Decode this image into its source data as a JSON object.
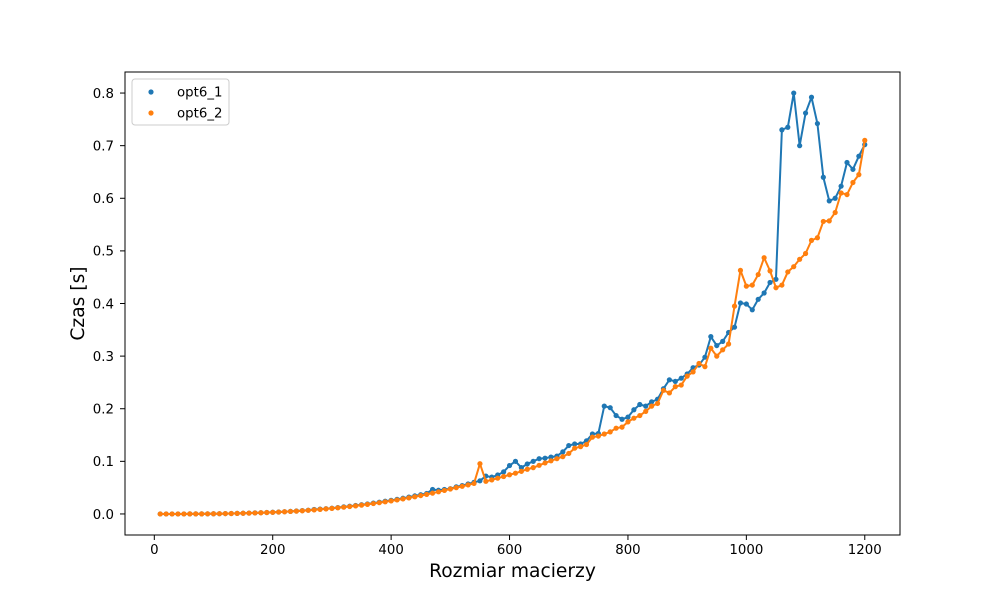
{
  "chart_data": {
    "type": "line",
    "xlabel": "Rozmiar macierzy",
    "ylabel": "Czas [s]",
    "xlim": [
      -49.5,
      1259.5
    ],
    "ylim": [
      -0.04,
      0.84
    ],
    "xticks": [
      0,
      200,
      400,
      600,
      800,
      1000,
      1200
    ],
    "xtick_labels": [
      "0",
      "200",
      "400",
      "600",
      "800",
      "1000",
      "1200"
    ],
    "yticks": [
      0.0,
      0.1,
      0.2,
      0.3,
      0.4,
      0.5,
      0.6,
      0.7,
      0.8
    ],
    "ytick_labels": [
      "0.0",
      "0.1",
      "0.2",
      "0.3",
      "0.4",
      "0.5",
      "0.6",
      "0.7",
      "0.8"
    ],
    "grid": false,
    "legend": "upper-left",
    "x": [
      10,
      20,
      30,
      40,
      50,
      60,
      70,
      80,
      90,
      100,
      110,
      120,
      130,
      140,
      150,
      160,
      170,
      180,
      190,
      200,
      210,
      220,
      230,
      240,
      250,
      260,
      270,
      280,
      290,
      300,
      310,
      320,
      330,
      340,
      350,
      360,
      370,
      380,
      390,
      400,
      410,
      420,
      430,
      440,
      450,
      460,
      470,
      480,
      490,
      500,
      510,
      520,
      530,
      540,
      550,
      560,
      570,
      580,
      590,
      600,
      610,
      620,
      630,
      640,
      650,
      660,
      670,
      680,
      690,
      700,
      710,
      720,
      730,
      740,
      750,
      760,
      770,
      780,
      790,
      800,
      810,
      820,
      830,
      840,
      850,
      860,
      870,
      880,
      890,
      900,
      910,
      920,
      930,
      940,
      950,
      960,
      970,
      980,
      990,
      1000,
      1010,
      1020,
      1030,
      1040,
      1050,
      1060,
      1070,
      1080,
      1090,
      1100,
      1110,
      1120,
      1130,
      1140,
      1150,
      1160,
      1170,
      1180,
      1190,
      1200
    ],
    "series": [
      {
        "name": "opt6_1",
        "color": "#1f77b4",
        "values": [
          0.0,
          0.0,
          0.0,
          0.0,
          0.0,
          0.0001,
          0.0001,
          0.0002,
          0.0003,
          0.0004,
          0.0005,
          0.0007,
          0.0009,
          0.0011,
          0.0014,
          0.0017,
          0.002,
          0.0024,
          0.0028,
          0.0032,
          0.0037,
          0.0043,
          0.0049,
          0.0056,
          0.0064,
          0.0072,
          0.0085,
          0.0092,
          0.01,
          0.011,
          0.0122,
          0.0134,
          0.0147,
          0.0161,
          0.0175,
          0.019,
          0.0206,
          0.0223,
          0.0241,
          0.0259,
          0.0278,
          0.0298,
          0.032,
          0.0343,
          0.0366,
          0.039,
          0.0465,
          0.045,
          0.0465,
          0.048,
          0.0515,
          0.054,
          0.057,
          0.06,
          0.063,
          0.072,
          0.07,
          0.074,
          0.08,
          0.092,
          0.1,
          0.088,
          0.095,
          0.1,
          0.105,
          0.106,
          0.108,
          0.11,
          0.118,
          0.13,
          0.133,
          0.133,
          0.139,
          0.152,
          0.153,
          0.205,
          0.202,
          0.187,
          0.18,
          0.184,
          0.198,
          0.208,
          0.205,
          0.213,
          0.218,
          0.238,
          0.255,
          0.252,
          0.258,
          0.266,
          0.278,
          0.283,
          0.298,
          0.337,
          0.32,
          0.328,
          0.345,
          0.355,
          0.401,
          0.399,
          0.388,
          0.408,
          0.42,
          0.44,
          0.446,
          0.73,
          0.735,
          0.8,
          0.7,
          0.762,
          0.792,
          0.742,
          0.64,
          0.595,
          0.6,
          0.623,
          0.668,
          0.655,
          0.68,
          0.702
        ]
      },
      {
        "name": "opt6_2",
        "color": "#ff7f0e",
        "values": [
          0.0,
          0.0,
          0.0,
          0.0,
          0.0,
          0.0001,
          0.0001,
          0.0002,
          0.0003,
          0.0004,
          0.0005,
          0.0007,
          0.0008,
          0.0011,
          0.0013,
          0.0016,
          0.0019,
          0.0023,
          0.0027,
          0.0031,
          0.0036,
          0.0042,
          0.0048,
          0.0054,
          0.0061,
          0.0069,
          0.0078,
          0.0087,
          0.0096,
          0.0106,
          0.0117,
          0.0129,
          0.0141,
          0.0154,
          0.0168,
          0.0182,
          0.0198,
          0.0214,
          0.0231,
          0.0248,
          0.0266,
          0.0286,
          0.0306,
          0.0327,
          0.0349,
          0.0372,
          0.0396,
          0.0421,
          0.0447,
          0.0474,
          0.05,
          0.0525,
          0.0552,
          0.058,
          0.0955,
          0.062,
          0.0648,
          0.068,
          0.0712,
          0.0745,
          0.0775,
          0.081,
          0.085,
          0.088,
          0.0925,
          0.097,
          0.101,
          0.105,
          0.109,
          0.115,
          0.125,
          0.128,
          0.132,
          0.146,
          0.148,
          0.152,
          0.156,
          0.163,
          0.165,
          0.175,
          0.182,
          0.187,
          0.195,
          0.205,
          0.21,
          0.235,
          0.23,
          0.242,
          0.245,
          0.262,
          0.27,
          0.286,
          0.28,
          0.315,
          0.3,
          0.312,
          0.323,
          0.395,
          0.463,
          0.433,
          0.435,
          0.455,
          0.487,
          0.462,
          0.43,
          0.435,
          0.46,
          0.47,
          0.484,
          0.495,
          0.52,
          0.525,
          0.556,
          0.557,
          0.573,
          0.61,
          0.607,
          0.63,
          0.645,
          0.71
        ]
      }
    ]
  }
}
